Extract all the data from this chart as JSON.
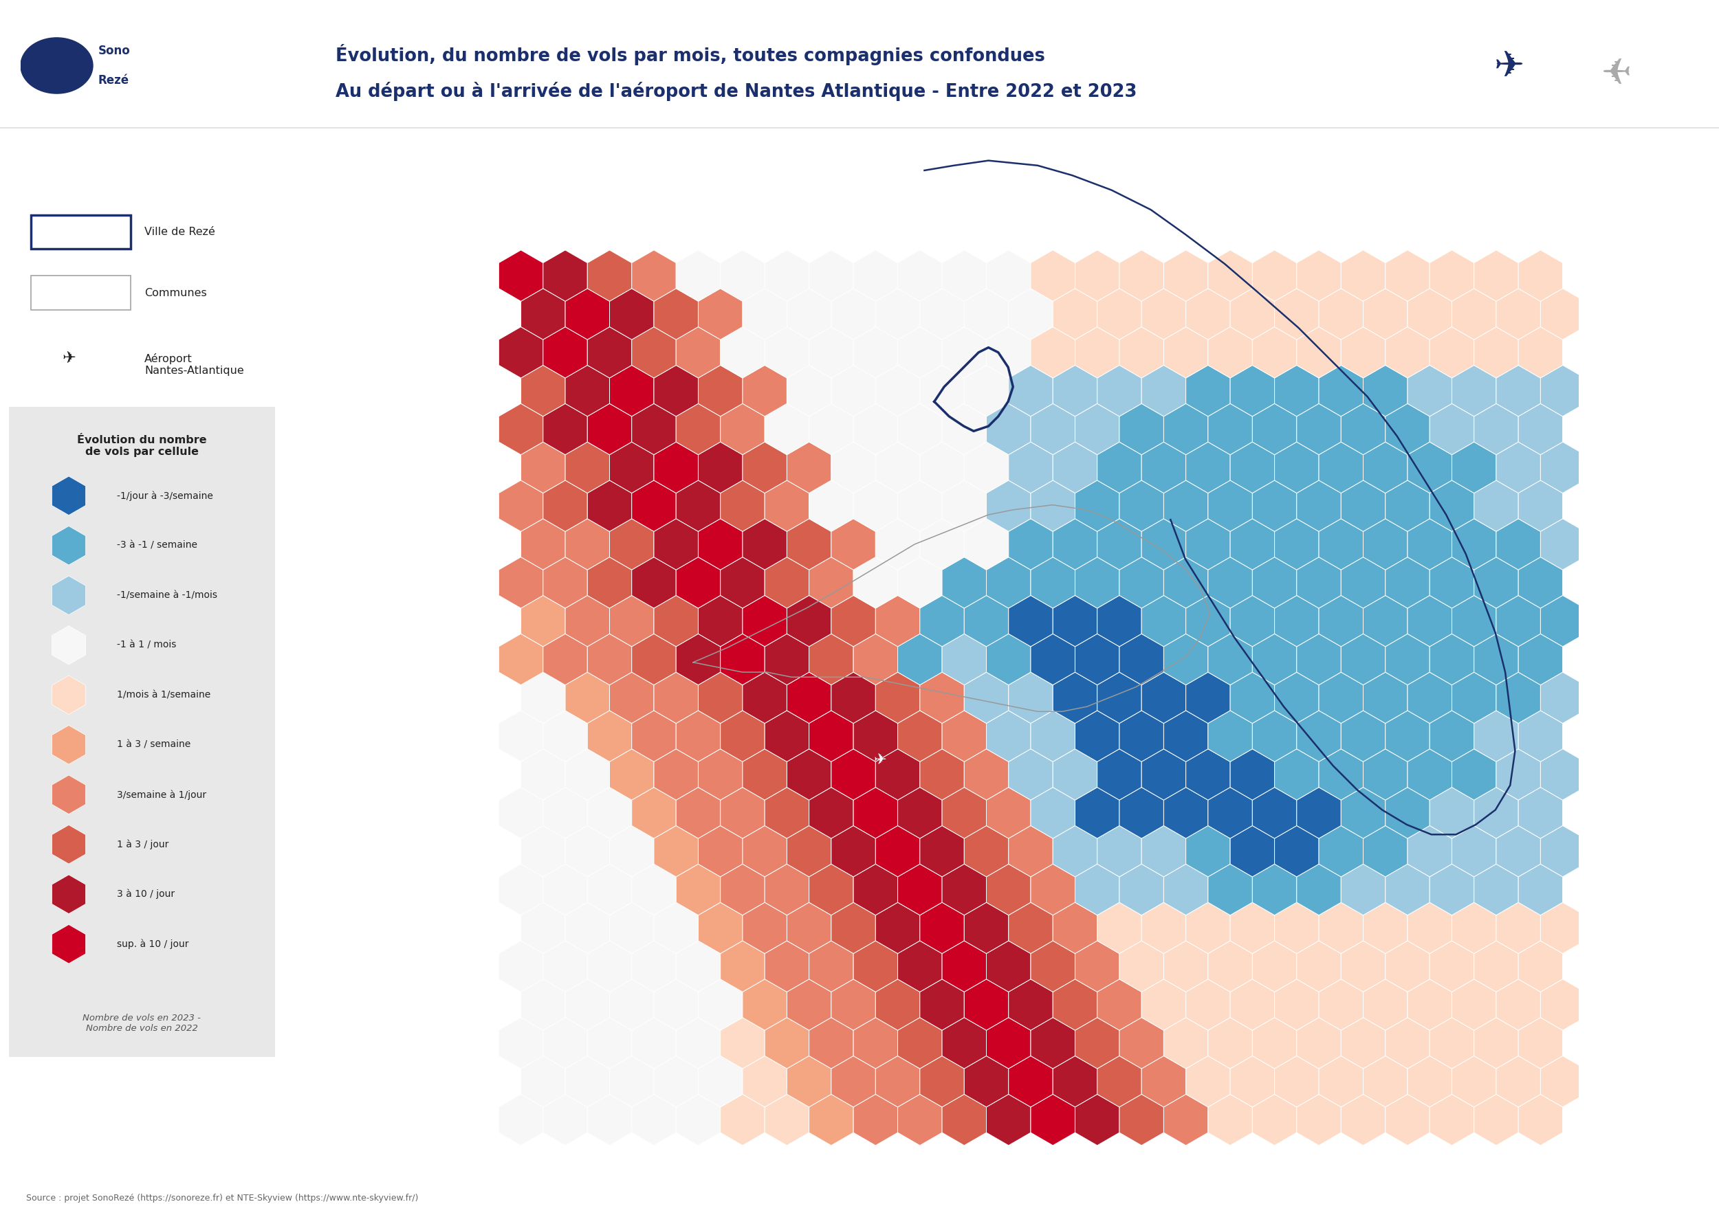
{
  "title_line1": "Évolution, du nombre de vols par mois, toutes compagnies confondues",
  "title_line2": "Au départ ou à l'arrivée de l'aéroport de Nantes Atlantique - Entre 2022 et 2023",
  "source": "Source : projet SonoRezé (https://sonoreze.fr) et NTE-Skyview (https://www.nte-skyview.fr/)",
  "legend_title": "Évolution du nombre\nde vols par cellule",
  "legend_items": [
    {
      "label": "-1/jour à -3/semaine",
      "color": "#2166ac"
    },
    {
      "label": "-3 à -1 / semaine",
      "color": "#5aadce"
    },
    {
      "label": "-1/semaine à -1/mois",
      "color": "#9ecae1"
    },
    {
      "label": "-1 à 1 / mois",
      "color": "#f7f7f7"
    },
    {
      "label": "1/mois à 1/semaine",
      "color": "#fddbc7"
    },
    {
      "label": "1 à 3 / semaine",
      "color": "#f4a582"
    },
    {
      "label": "3/semaine à 1/jour",
      "color": "#e8826a"
    },
    {
      "label": "1 à 3 / jour",
      "color": "#d6604d"
    },
    {
      "label": "3 à 10 / jour",
      "color": "#b2182b"
    },
    {
      "label": "sup. à 10 / jour",
      "color": "#cc0022"
    }
  ],
  "legend_note": "Nombre de vols en 2023 -\nNombre de vols en 2022",
  "bg_color": "#ffffff",
  "panel_bg": "#e8e8e8",
  "title_color": "#1a2f6b",
  "reze_color": "#1a2f6b",
  "communes_color": "#999999",
  "nantes_color": "#1a2f6b"
}
